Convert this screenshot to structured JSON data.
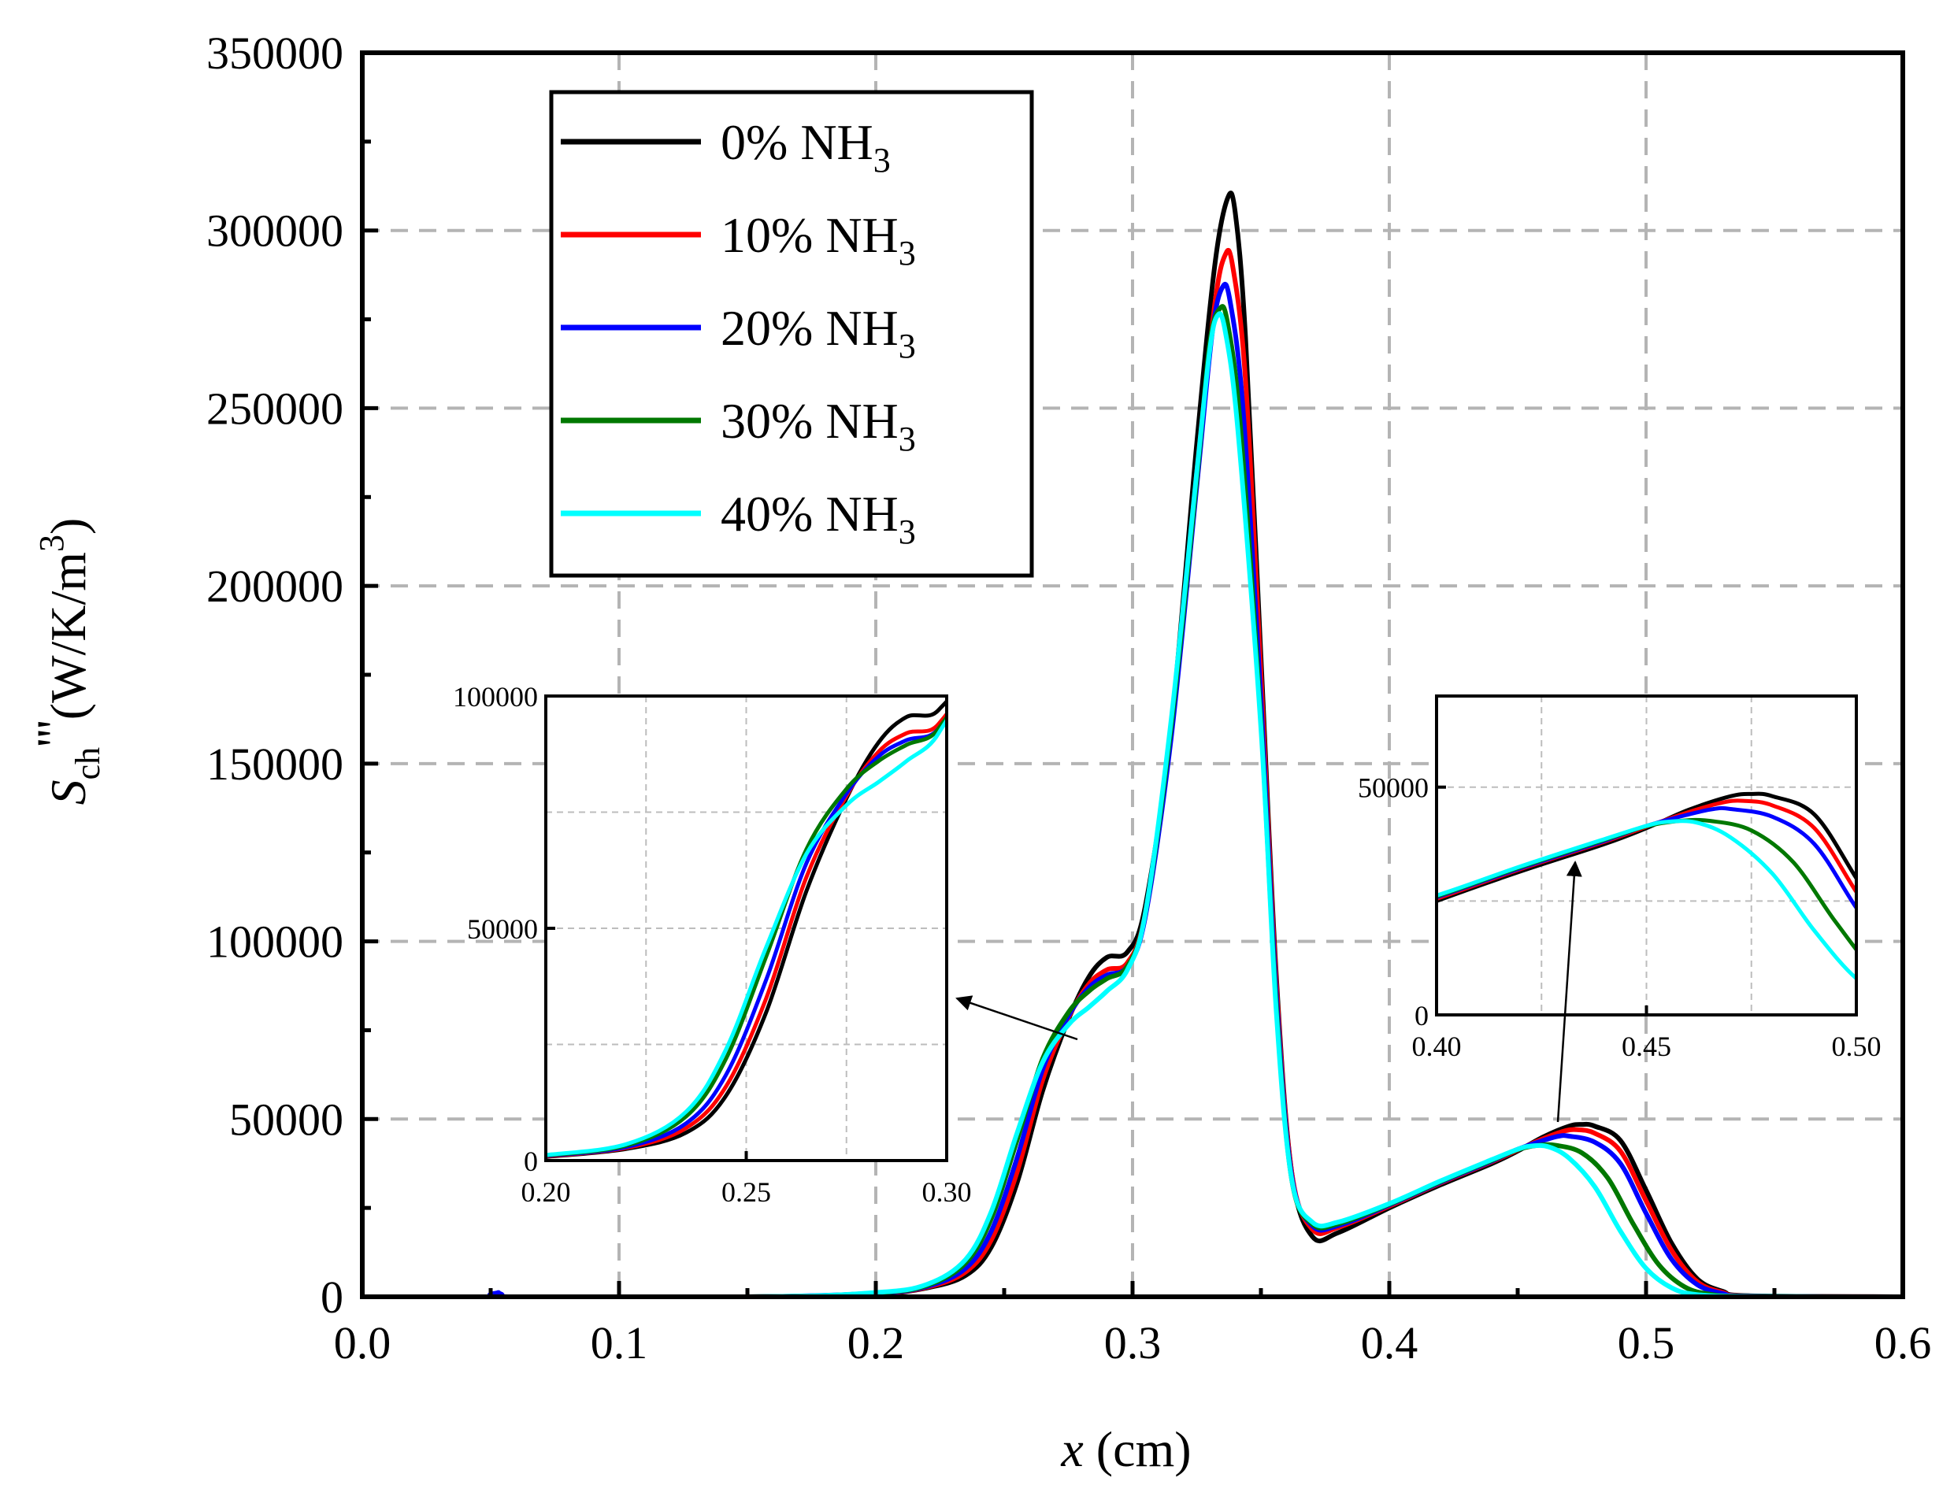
{
  "chart_data": {
    "type": "line",
    "title": "",
    "xlabel": "x (cm)",
    "ylabel": "S_ch\"'(W/K/m^3)",
    "xlabel_parts": {
      "var": "x",
      "unit": " (cm)"
    },
    "ylabel_parts": {
      "sym": "S",
      "sub": "ch",
      "mark": "'''",
      "unit": "(W/K/m",
      "exp": "3",
      "close": ")"
    },
    "xlim": [
      0,
      0.6
    ],
    "ylim": [
      0,
      350000
    ],
    "grid": true,
    "x_ticks": [
      "0.0",
      "0.1",
      "0.2",
      "0.3",
      "0.4",
      "0.5",
      "0.6"
    ],
    "y_ticks": [
      "0",
      "50000",
      "100000",
      "150000",
      "200000",
      "250000",
      "300000",
      "350000"
    ],
    "legend": {
      "position": "top-left",
      "ion": "% NH",
      "sub": "3"
    },
    "series": [
      {
        "name": "0% NH3",
        "percent": "0",
        "color": "#000000",
        "points": [
          [
            0,
            0
          ],
          [
            0.15,
            0
          ],
          [
            0.2,
            800
          ],
          [
            0.22,
            2500
          ],
          [
            0.235,
            6000
          ],
          [
            0.245,
            14000
          ],
          [
            0.255,
            32000
          ],
          [
            0.265,
            58000
          ],
          [
            0.275,
            78000
          ],
          [
            0.283,
            90000
          ],
          [
            0.29,
            95500
          ],
          [
            0.298,
            97000
          ],
          [
            0.305,
            110000
          ],
          [
            0.315,
            160000
          ],
          [
            0.325,
            240000
          ],
          [
            0.332,
            290000
          ],
          [
            0.337,
            309000
          ],
          [
            0.34,
            305000
          ],
          [
            0.344,
            270000
          ],
          [
            0.35,
            180000
          ],
          [
            0.356,
            90000
          ],
          [
            0.362,
            35000
          ],
          [
            0.37,
            17000
          ],
          [
            0.38,
            18000
          ],
          [
            0.4,
            25000
          ],
          [
            0.42,
            31500
          ],
          [
            0.44,
            37500
          ],
          [
            0.45,
            41000
          ],
          [
            0.46,
            45000
          ],
          [
            0.47,
            48000
          ],
          [
            0.475,
            48500
          ],
          [
            0.48,
            48000
          ],
          [
            0.49,
            44000
          ],
          [
            0.5,
            30000
          ],
          [
            0.51,
            15000
          ],
          [
            0.52,
            5000
          ],
          [
            0.53,
            1500
          ],
          [
            0.54,
            300
          ],
          [
            0.6,
            0
          ]
        ]
      },
      {
        "name": "10% NH3",
        "percent": "10",
        "color": "#ff0000",
        "points": [
          [
            0,
            0
          ],
          [
            0.15,
            0
          ],
          [
            0.2,
            900
          ],
          [
            0.22,
            2700
          ],
          [
            0.235,
            7000
          ],
          [
            0.245,
            16000
          ],
          [
            0.255,
            35000
          ],
          [
            0.265,
            61000
          ],
          [
            0.275,
            78500
          ],
          [
            0.283,
            88000
          ],
          [
            0.29,
            92000
          ],
          [
            0.298,
            94000
          ],
          [
            0.305,
            108000
          ],
          [
            0.315,
            158000
          ],
          [
            0.325,
            232000
          ],
          [
            0.332,
            279000
          ],
          [
            0.336,
            293000
          ],
          [
            0.339,
            290000
          ],
          [
            0.344,
            258000
          ],
          [
            0.35,
            175000
          ],
          [
            0.356,
            88000
          ],
          [
            0.362,
            35000
          ],
          [
            0.37,
            19000
          ],
          [
            0.38,
            19500
          ],
          [
            0.4,
            25500
          ],
          [
            0.42,
            32000
          ],
          [
            0.44,
            38000
          ],
          [
            0.45,
            41300
          ],
          [
            0.46,
            44500
          ],
          [
            0.468,
            46600
          ],
          [
            0.473,
            47000
          ],
          [
            0.48,
            46000
          ],
          [
            0.49,
            41000
          ],
          [
            0.5,
            27000
          ],
          [
            0.51,
            13000
          ],
          [
            0.52,
            4200
          ],
          [
            0.53,
            1200
          ],
          [
            0.54,
            200
          ],
          [
            0.6,
            0
          ]
        ]
      },
      {
        "name": "20% NH3",
        "percent": "20",
        "color": "#0000ff",
        "points": [
          [
            0,
            0
          ],
          [
            0.05,
            0
          ],
          [
            0.053,
            1200
          ],
          [
            0.058,
            0
          ],
          [
            0.15,
            0
          ],
          [
            0.2,
            1000
          ],
          [
            0.22,
            2900
          ],
          [
            0.235,
            8000
          ],
          [
            0.245,
            18500
          ],
          [
            0.255,
            39000
          ],
          [
            0.265,
            64000
          ],
          [
            0.275,
            79000
          ],
          [
            0.283,
            87000
          ],
          [
            0.29,
            90500
          ],
          [
            0.298,
            93000
          ],
          [
            0.305,
            107000
          ],
          [
            0.315,
            157000
          ],
          [
            0.325,
            228000
          ],
          [
            0.331,
            271000
          ],
          [
            0.335,
            284000
          ],
          [
            0.338,
            280000
          ],
          [
            0.343,
            250000
          ],
          [
            0.35,
            168000
          ],
          [
            0.356,
            85000
          ],
          [
            0.362,
            34000
          ],
          [
            0.37,
            20000
          ],
          [
            0.38,
            20000
          ],
          [
            0.4,
            25800
          ],
          [
            0.42,
            32200
          ],
          [
            0.44,
            38200
          ],
          [
            0.45,
            41500
          ],
          [
            0.46,
            44000
          ],
          [
            0.466,
            45200
          ],
          [
            0.47,
            45200
          ],
          [
            0.48,
            43500
          ],
          [
            0.49,
            37500
          ],
          [
            0.5,
            23500
          ],
          [
            0.51,
            10500
          ],
          [
            0.52,
            3400
          ],
          [
            0.53,
            900
          ],
          [
            0.54,
            150
          ],
          [
            0.6,
            0
          ]
        ]
      },
      {
        "name": "30% NH3",
        "percent": "30",
        "color": "#007800",
        "points": [
          [
            0,
            0
          ],
          [
            0.15,
            0
          ],
          [
            0.2,
            1100
          ],
          [
            0.22,
            3200
          ],
          [
            0.235,
            9500
          ],
          [
            0.245,
            22000
          ],
          [
            0.255,
            44000
          ],
          [
            0.265,
            67000
          ],
          [
            0.275,
            80000
          ],
          [
            0.283,
            86000
          ],
          [
            0.29,
            89500
          ],
          [
            0.298,
            93000
          ],
          [
            0.305,
            108000
          ],
          [
            0.315,
            160000
          ],
          [
            0.325,
            230000
          ],
          [
            0.33,
            268000
          ],
          [
            0.334,
            278000
          ],
          [
            0.337,
            274000
          ],
          [
            0.342,
            245000
          ],
          [
            0.35,
            162000
          ],
          [
            0.356,
            82000
          ],
          [
            0.362,
            33000
          ],
          [
            0.37,
            20500
          ],
          [
            0.38,
            20500
          ],
          [
            0.4,
            26000
          ],
          [
            0.42,
            32400
          ],
          [
            0.44,
            38400
          ],
          [
            0.45,
            41400
          ],
          [
            0.458,
            42600
          ],
          [
            0.465,
            42600
          ],
          [
            0.475,
            40500
          ],
          [
            0.485,
            33500
          ],
          [
            0.495,
            20500
          ],
          [
            0.505,
            9000
          ],
          [
            0.515,
            2800
          ],
          [
            0.525,
            700
          ],
          [
            0.54,
            100
          ],
          [
            0.6,
            0
          ]
        ]
      },
      {
        "name": "40% NH3",
        "percent": "40",
        "color": "#00ffff",
        "points": [
          [
            0,
            0
          ],
          [
            0.15,
            0
          ],
          [
            0.2,
            1200
          ],
          [
            0.22,
            3500
          ],
          [
            0.235,
            10500
          ],
          [
            0.245,
            24000
          ],
          [
            0.255,
            46000
          ],
          [
            0.265,
            66000
          ],
          [
            0.275,
            76500
          ],
          [
            0.283,
            81500
          ],
          [
            0.29,
            86000
          ],
          [
            0.298,
            92000
          ],
          [
            0.305,
            108000
          ],
          [
            0.315,
            162000
          ],
          [
            0.325,
            232000
          ],
          [
            0.33,
            266000
          ],
          [
            0.333,
            276000
          ],
          [
            0.336,
            272000
          ],
          [
            0.341,
            244000
          ],
          [
            0.35,
            160000
          ],
          [
            0.356,
            80000
          ],
          [
            0.362,
            33000
          ],
          [
            0.37,
            21000
          ],
          [
            0.38,
            21000
          ],
          [
            0.4,
            26200
          ],
          [
            0.42,
            32600
          ],
          [
            0.44,
            38600
          ],
          [
            0.45,
            41500
          ],
          [
            0.455,
            42400
          ],
          [
            0.462,
            42200
          ],
          [
            0.47,
            39000
          ],
          [
            0.48,
            31000
          ],
          [
            0.49,
            18500
          ],
          [
            0.5,
            8000
          ],
          [
            0.51,
            2500
          ],
          [
            0.52,
            600
          ],
          [
            0.54,
            80
          ],
          [
            0.6,
            0
          ]
        ]
      }
    ],
    "insets": [
      {
        "xlim": [
          0.2,
          0.3
        ],
        "ylim": [
          0,
          100000
        ],
        "x_ticks": [
          "0.20",
          "0.25",
          "0.30"
        ],
        "y_ticks": [
          "0",
          "50000",
          "100000"
        ]
      },
      {
        "xlim": [
          0.4,
          0.5
        ],
        "ylim": [
          0,
          70000
        ],
        "x_ticks": [
          "0.40",
          "0.45",
          "0.50"
        ],
        "y_ticks": [
          "0",
          "50000"
        ]
      }
    ]
  }
}
